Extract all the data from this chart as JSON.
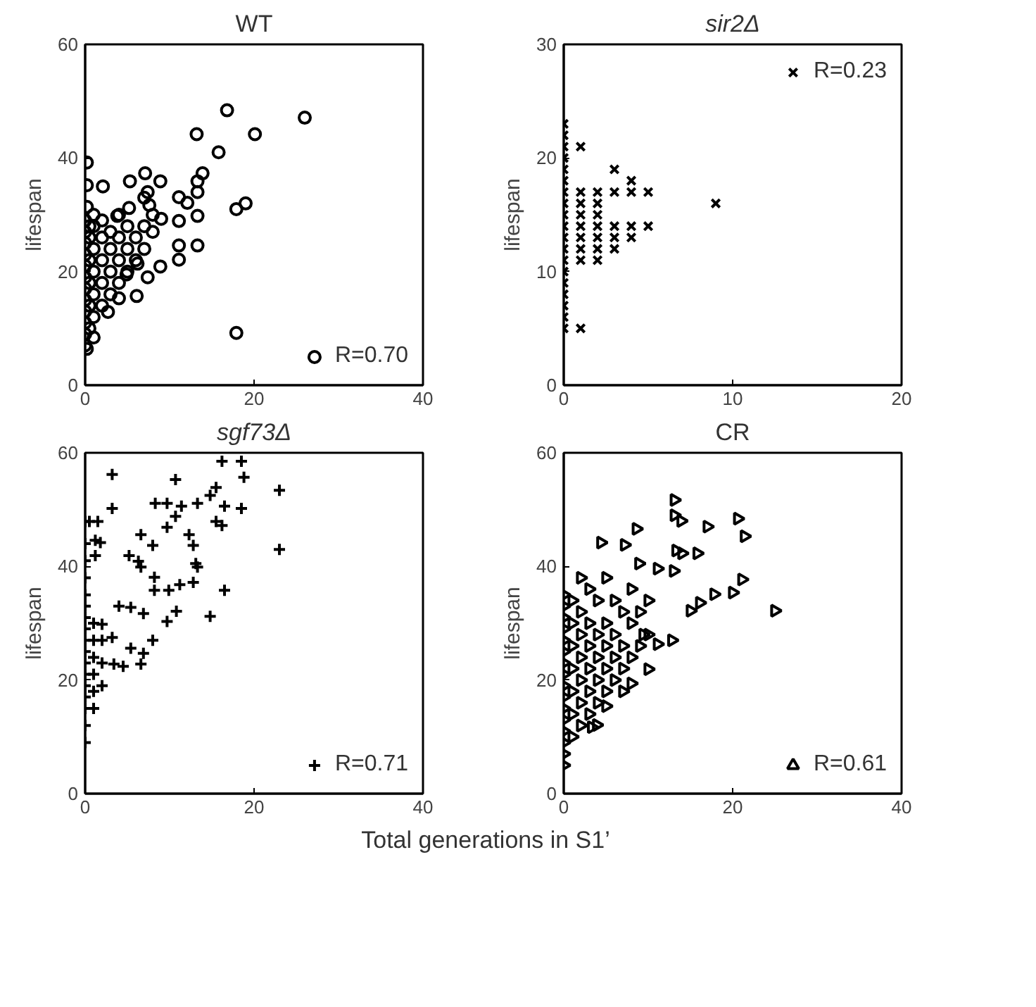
{
  "chart_data": [
    {
      "type": "scatter",
      "title": "WT",
      "ylabel": "lifespan",
      "xlim": [
        0,
        40
      ],
      "xticks": [
        0,
        20,
        40
      ],
      "ylim": [
        0,
        60
      ],
      "yticks": [
        0,
        20,
        40,
        60
      ],
      "grid": false,
      "legend": "bottom right",
      "series": [
        {
          "name": "R=0.70",
          "color": "#000000",
          "marker": "circle",
          "x": [
            16.8,
            26,
            13.2,
            20.1,
            15.8,
            13.9,
            13.3,
            7.1,
            8.9,
            5.3,
            2.1,
            0.2,
            0.2,
            0.2,
            17.9,
            19,
            11.1,
            12.1,
            13.3,
            13.3,
            11.1,
            9,
            7.4,
            7.6,
            5.2,
            3.8,
            13.3,
            11.1,
            11.1,
            8.9,
            17.9,
            6.1,
            4,
            7.4,
            6.2,
            4.9,
            2.7,
            1,
            0.2,
            0,
            0,
            0,
            0,
            0,
            0,
            0,
            0,
            0,
            0,
            0,
            0,
            0.5,
            0.5,
            0.5,
            0.5,
            0.5,
            0.5,
            1,
            1,
            1,
            1,
            1,
            1,
            2,
            2,
            2,
            2,
            2,
            3,
            3,
            3,
            3,
            4,
            4,
            4,
            4,
            5,
            5,
            5,
            6,
            6,
            7,
            7,
            7,
            8,
            8
          ],
          "values": [
            48.4,
            47.1,
            44.2,
            44.2,
            41,
            37.3,
            35.9,
            37.3,
            35.9,
            35.9,
            35,
            39.2,
            35.2,
            31.4,
            31,
            32,
            33.1,
            32.1,
            34,
            29.8,
            28.9,
            29.3,
            34,
            31.7,
            31.2,
            29.8,
            24.6,
            24.6,
            22.1,
            20.9,
            9.2,
            15.7,
            15.3,
            19,
            21.4,
            19.5,
            12.9,
            8.4,
            6.4,
            7,
            9,
            11,
            13,
            15,
            17,
            19,
            21,
            23,
            25,
            27,
            29,
            10,
            14,
            18,
            22,
            26,
            28,
            12,
            16,
            20,
            24,
            28,
            30,
            14,
            18,
            22,
            26,
            29,
            16,
            20,
            24,
            27,
            18,
            22,
            26,
            30,
            20,
            24,
            28,
            22,
            26,
            24,
            28,
            33,
            27,
            30
          ]
        }
      ]
    },
    {
      "type": "scatter",
      "title": "sir2Δ",
      "ylabel": "lifespan",
      "xlim": [
        0,
        20
      ],
      "xticks": [
        0,
        10,
        20
      ],
      "ylim": [
        0,
        30
      ],
      "yticks": [
        0,
        10,
        20,
        30
      ],
      "grid": false,
      "legend": "top right",
      "series": [
        {
          "name": "R=0.23",
          "color": "#000000",
          "marker": "x",
          "x": [
            0,
            0,
            0,
            0,
            0,
            0,
            0,
            0,
            0,
            0,
            0,
            0,
            0,
            0,
            0,
            0,
            0,
            0,
            0,
            1,
            1,
            1,
            1,
            1,
            1,
            1,
            1,
            1,
            2,
            2,
            2,
            2,
            2,
            2,
            2,
            3,
            3,
            3,
            3,
            3,
            4,
            4,
            4,
            4,
            5,
            5,
            9
          ],
          "values": [
            5,
            6,
            7,
            8,
            9,
            10,
            11,
            12,
            13,
            14,
            15,
            16,
            17,
            18,
            19,
            20,
            21,
            22,
            23,
            5,
            11,
            12,
            13,
            14,
            15,
            16,
            17,
            21,
            11,
            12,
            13,
            14,
            15,
            16,
            17,
            12,
            13,
            14,
            17,
            19,
            13,
            14,
            17,
            18,
            14,
            17,
            16
          ]
        }
      ]
    },
    {
      "type": "scatter",
      "title": "sgf73Δ",
      "ylabel": "lifespan",
      "xlim": [
        0,
        40
      ],
      "xticks": [
        0,
        20,
        40
      ],
      "ylim": [
        0,
        60
      ],
      "yticks": [
        0,
        20,
        40,
        60
      ],
      "grid": false,
      "legend": "bottom right",
      "series": [
        {
          "name": "R=0.71",
          "color": "#000000",
          "marker": "cross",
          "x": [
            3.2,
            10.7,
            16.2,
            18.5,
            18.8,
            15.5,
            23,
            23,
            3.2,
            8.3,
            9.7,
            11.4,
            13.3,
            14.8,
            16.5,
            18.5,
            15.5,
            16.2,
            10.7,
            9.7,
            6.6,
            8,
            12.3,
            12.8,
            5.2,
            6.3,
            6.6,
            13.1,
            13.3,
            8.2,
            8.2,
            9.9,
            11.2,
            12.8,
            16.5,
            14.8,
            4,
            5.4,
            6.9,
            10.8,
            9.7,
            2,
            3.2,
            5.4,
            8,
            6.9,
            4.5,
            6.6,
            3.4,
            1.5,
            0.5,
            0,
            1.2,
            1.8,
            1.2,
            0,
            0,
            0,
            0,
            0,
            0,
            0,
            0,
            0,
            0,
            0,
            0,
            0,
            0,
            0,
            0,
            1,
            1,
            1,
            1,
            1,
            1,
            2,
            2,
            2
          ],
          "values": [
            56.2,
            55.3,
            58.5,
            58.5,
            55.7,
            53.9,
            53.4,
            43,
            50.2,
            51.1,
            51.1,
            50.6,
            51.1,
            52.5,
            50.6,
            50.2,
            47.9,
            47.2,
            48.8,
            46.9,
            45.6,
            43.7,
            45.6,
            43.7,
            41.9,
            40.9,
            39.9,
            40.5,
            39.9,
            38.1,
            35.8,
            35.8,
            36.8,
            37.2,
            35.8,
            31.2,
            33,
            32.8,
            31.7,
            32.1,
            30.3,
            29.8,
            27.5,
            25.6,
            27,
            24.7,
            22.4,
            22.8,
            22.8,
            47.9,
            47.9,
            47.9,
            44.6,
            44.2,
            41.9,
            9,
            12,
            15,
            17,
            19,
            21,
            23,
            25,
            27,
            29,
            31,
            33,
            35,
            38,
            41,
            44,
            15,
            18,
            21,
            24,
            27,
            30,
            19,
            23,
            27
          ]
        }
      ]
    },
    {
      "type": "scatter",
      "title": "CR",
      "ylabel": "lifespan",
      "xlabel": "Total generations in S1’",
      "xlim": [
        0,
        40
      ],
      "xticks": [
        0,
        20,
        40
      ],
      "ylim": [
        0,
        60
      ],
      "yticks": [
        0,
        20,
        40,
        60
      ],
      "grid": false,
      "legend": "bottom right",
      "series": [
        {
          "name": "R=0.61",
          "color": "#000000",
          "marker": "triangle",
          "x": [
            13.1,
            13.1,
            13.9,
            17,
            20.6,
            21.4,
            8.6,
            7.2,
            4.4,
            13.3,
            15.8,
            14,
            8.9,
            11.1,
            13,
            21.1,
            20,
            17.8,
            16.1,
            15,
            25,
            12.8,
            11.1,
            9.4,
            10,
            8,
            7,
            5,
            3.9,
            3.3,
            0,
            0,
            0,
            0,
            0,
            0,
            0,
            0,
            0,
            0,
            0,
            0,
            0,
            0,
            0,
            0,
            1,
            1,
            1,
            1,
            1,
            1,
            1,
            2,
            2,
            2,
            2,
            2,
            2,
            2,
            3,
            3,
            3,
            3,
            3,
            3,
            4,
            4,
            4,
            4,
            4,
            5,
            5,
            5,
            5,
            5,
            6,
            6,
            6,
            6,
            7,
            7,
            7,
            8,
            8,
            8,
            9,
            9,
            10,
            10
          ],
          "values": [
            51.7,
            49,
            48,
            47,
            48.4,
            45.3,
            46.6,
            43.8,
            44.2,
            42.8,
            42.3,
            42.3,
            40.5,
            39.6,
            39.2,
            37.7,
            35.4,
            35.1,
            33.6,
            32.2,
            32.2,
            27,
            26.3,
            28,
            21.9,
            19.4,
            18,
            15.4,
            12.1,
            11.7,
            5,
            7,
            9,
            11,
            13,
            15,
            17,
            19,
            21,
            23,
            25,
            27,
            29,
            31,
            33,
            35,
            10,
            14,
            18,
            22,
            26,
            30,
            34,
            12,
            16,
            20,
            24,
            28,
            32,
            38,
            14,
            18,
            22,
            26,
            30,
            36,
            16,
            20,
            24,
            28,
            34,
            18,
            22,
            26,
            30,
            38,
            20,
            24,
            28,
            34,
            22,
            26,
            32,
            24,
            30,
            36,
            26,
            32,
            28,
            34
          ]
        }
      ]
    }
  ]
}
